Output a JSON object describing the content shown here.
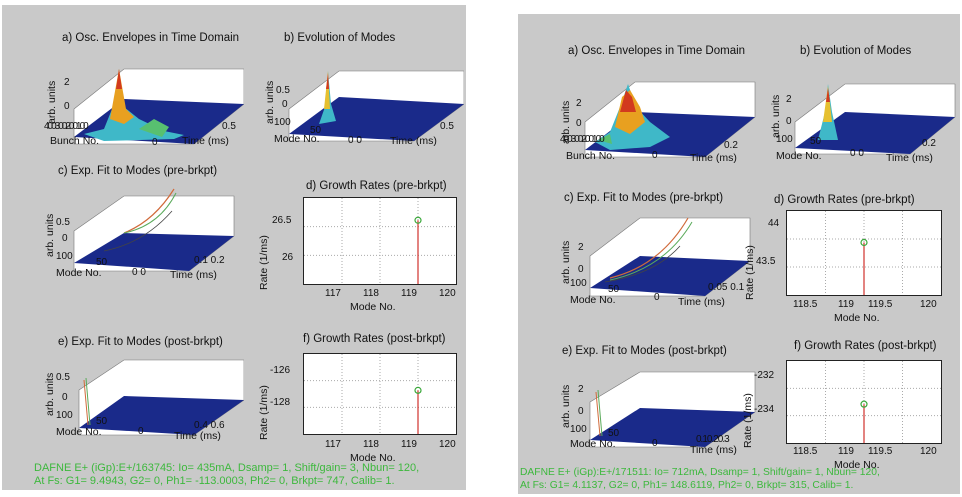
{
  "panels": [
    {
      "titles": {
        "a": "a) Osc. Envelopes in Time Domain",
        "b": "b) Evolution of Modes",
        "c": "c) Exp. Fit to Modes (pre-brkpt)",
        "d": "d) Growth Rates (pre-brkpt)",
        "e": "e) Exp. Fit to Modes (post-brkpt)",
        "f": "f) Growth Rates (post-brkpt)"
      },
      "a": {
        "ylabel": "arb. units",
        "zticks": [
          "2",
          "0"
        ],
        "bunch_ticks": "400300200100",
        "x0": "0",
        "x1": "0.5",
        "bunch_label": "Bunch No.",
        "time_label": "Time (ms)"
      },
      "b": {
        "ylabel": "arb. units",
        "zticks": [
          "0.5",
          "0"
        ],
        "mode_ticks": [
          "100",
          "50"
        ],
        "x0": "0 0",
        "x1": "0.5",
        "mode_label": "Mode No.",
        "time_label": "Time (ms)"
      },
      "c": {
        "ylabel": "arb. units",
        "zticks": [
          "0.5",
          "0"
        ],
        "mode_ticks": [
          "100",
          "50"
        ],
        "x0": "0 0",
        "x1": "0.1 0.2",
        "mode_label": "Mode No.",
        "time_label": "Time (ms)"
      },
      "e": {
        "ylabel": "arb. units",
        "zticks": [
          "0.5",
          "0"
        ],
        "mode_ticks": [
          "100",
          "50"
        ],
        "x0": "0",
        "x1": "0.4 0.6",
        "mode_label": "Mode No.",
        "time_label": "Time (ms)"
      },
      "footer": [
        "DAFNE E+ (iGp):E+/163745:  Io= 435mA,  Dsamp= 1,  Shift/gain= 3,  Nbun= 120,",
        "At Fs: G1= 9.4943,  G2= 0,  Ph1= -113.0003,  Ph2= 0,  Brkpt= 747,  Calib= 1."
      ]
    },
    {
      "titles": {
        "a": "a) Osc. Envelopes in Time Domain",
        "b": "b) Evolution of Modes",
        "c": "c) Exp. Fit to Modes (pre-brkpt)",
        "d": "d) Growth Rates (pre-brkpt)",
        "e": "e) Exp. Fit to Modes (post-brkpt)",
        "f": "f) Growth Rates (post-brkpt)"
      },
      "a": {
        "ylabel": "arb. units",
        "zticks": [
          "2",
          "0"
        ],
        "bunch_ticks": "400300200100",
        "x0": "0",
        "x1": "0.2",
        "bunch_label": "Bunch No.",
        "time_label": "Time (ms)"
      },
      "b": {
        "ylabel": "arb. units",
        "zticks": [
          "2",
          "0"
        ],
        "mode_ticks": [
          "100",
          "50"
        ],
        "x0": "0 0",
        "x1": "0.2",
        "mode_label": "Mode No.",
        "time_label": "Time (ms)"
      },
      "c": {
        "ylabel": "arb. units",
        "zticks": [
          "2",
          "0"
        ],
        "mode_ticks": [
          "100",
          "50"
        ],
        "x0": "0",
        "x1": "0.05 0.1",
        "mode_label": "Mode No.",
        "time_label": "Time (ms)"
      },
      "e": {
        "ylabel": "arb. units",
        "zticks": [
          "2",
          "0"
        ],
        "mode_ticks": [
          "100",
          "50"
        ],
        "x0": "0",
        "x1": "0.10.20.3",
        "mode_label": "Mode No.",
        "time_label": "Time (ms)"
      },
      "footer": [
        "DAFNE E+ (iGp):E+/171511:  Io= 712mA,  Dsamp= 1,  Shift/gain= 1,  Nbun= 120,",
        "At Fs: G1= 4.1137,  G2= 0,  Ph1= 148.6119,  Ph2= 0,  Brkpt= 315,  Calib= 1."
      ]
    }
  ],
  "chart_data": [
    {
      "type": "scatter",
      "title": "d) Growth Rates (pre-brkpt)",
      "xlabel": "Mode No.",
      "ylabel": "Rate  (1/ms)",
      "xlim": [
        116,
        120
      ],
      "ylim": [
        25.75,
        26.6
      ],
      "xticks": [
        "117",
        "118",
        "119",
        "120"
      ],
      "yticks": [
        "26.5",
        "26"
      ],
      "x": [
        119
      ],
      "y": [
        26.38
      ]
    },
    {
      "type": "scatter",
      "title": "f) Growth Rates (post-brkpt)",
      "xlabel": "Mode No.",
      "ylabel": "Rate  (1/ms)",
      "xlim": [
        116,
        120
      ],
      "ylim": [
        -129.6,
        -125.2
      ],
      "xticks": [
        "117",
        "118",
        "119",
        "120"
      ],
      "yticks": [
        "-126",
        "-128"
      ],
      "x": [
        119
      ],
      "y": [
        -127.2
      ]
    },
    {
      "type": "scatter",
      "title": "d) Growth Rates (pre-brkpt)",
      "xlabel": "Mode No.",
      "ylabel": "Rate  (1/ms)",
      "xlim": [
        118,
        120
      ],
      "ylim": [
        43.3,
        44.1
      ],
      "xticks": [
        "118.5",
        "119",
        "119.5",
        "120"
      ],
      "yticks": [
        "44",
        "43.5"
      ],
      "x": [
        119
      ],
      "y": [
        43.8
      ]
    },
    {
      "type": "scatter",
      "title": "f) Growth Rates (post-brkpt)",
      "xlabel": "Mode No.",
      "ylabel": "Rate  (1/ms)",
      "xlim": [
        118,
        120
      ],
      "ylim": [
        -235.2,
        -231.4
      ],
      "xticks": [
        "118.5",
        "119",
        "119.5",
        "120"
      ],
      "yticks": [
        "-232",
        "-234"
      ],
      "x": [
        119
      ],
      "y": [
        -233.4
      ]
    }
  ]
}
